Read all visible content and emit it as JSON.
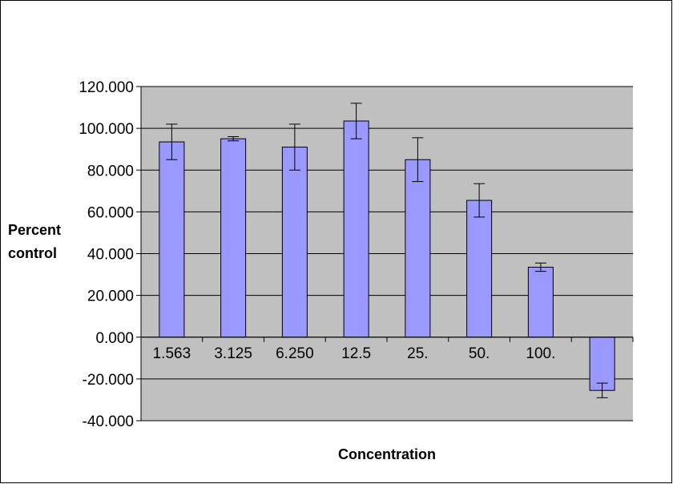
{
  "chart_data": {
    "type": "bar",
    "title": "",
    "xlabel": "Concentration",
    "ylabel": [
      "Percent",
      "control"
    ],
    "categories": [
      "1.563",
      "3.125",
      "6.250",
      "12.5",
      "25.",
      "50.",
      "100.",
      ""
    ],
    "values": [
      93.5,
      95.0,
      91.0,
      103.5,
      85.0,
      65.5,
      33.5,
      -25.5
    ],
    "error": [
      8.5,
      1.0,
      11.0,
      8.5,
      10.5,
      8.0,
      2.0,
      3.5
    ],
    "ylim": [
      -40,
      120
    ],
    "ytick_step": 20,
    "ytick_labels": [
      "-40.000",
      "-20.000",
      "0.000",
      "20.000",
      "40.000",
      "60.000",
      "80.000",
      "100.000",
      "120.000"
    ],
    "grid": true,
    "legend": "none",
    "colors": {
      "bar_fill": "#9999ff",
      "bar_stroke": "#000000",
      "plot_background": "#c0c0c0",
      "gridline": "#000000",
      "page_border": "#000000"
    }
  }
}
